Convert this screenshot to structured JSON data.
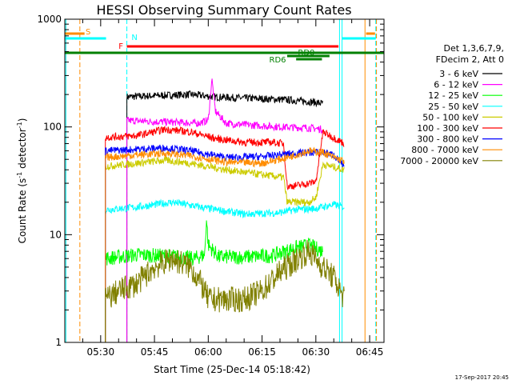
{
  "chart_data": {
    "type": "line",
    "title": "HESSI Observing Summary Count Rates",
    "xlabel": "Start Time (25-Dec-14 05:18:42)",
    "ylabel_main": "Count Rate (s",
    "ylabel_sup1": "-1",
    "ylabel_mid": " detector",
    "ylabel_sup2": "-1",
    "ylabel_end": ")",
    "y_scale": "log",
    "ylim": [
      1,
      1000
    ],
    "xlim_min": [
      20,
      109
    ],
    "ytick_labels": [
      "1",
      "10",
      "100",
      "1000"
    ],
    "ytick_values": [
      1,
      10,
      100,
      1000
    ],
    "xtick_labels": [
      "05:30",
      "05:45",
      "06:00",
      "06:15",
      "06:30",
      "06:45"
    ],
    "xtick_values_min": [
      30,
      45,
      60,
      75,
      90,
      105
    ],
    "legend_header": [
      "Det 1,3,6,7,9,",
      "FDecim 2, Att 0"
    ],
    "legend_position": "right",
    "series": [
      {
        "name": "3 - 6 keV",
        "color": "#000000",
        "points": [
          [
            37.3,
            190
          ],
          [
            45,
            195
          ],
          [
            55,
            200
          ],
          [
            62,
            190
          ],
          [
            70,
            185
          ],
          [
            80,
            180
          ],
          [
            88,
            172
          ],
          [
            92,
            165
          ]
        ]
      },
      {
        "name": "6 - 12 keV",
        "color": "#ff00ff",
        "points": [
          [
            37.3,
            115
          ],
          [
            45,
            112
          ],
          [
            52,
            110
          ],
          [
            57,
            108
          ],
          [
            60,
            115
          ],
          [
            61,
            280
          ],
          [
            62,
            140
          ],
          [
            65,
            108
          ],
          [
            70,
            105
          ],
          [
            80,
            100
          ],
          [
            88,
            98
          ],
          [
            92,
            95
          ]
        ]
      },
      {
        "name": "12 - 25 keV",
        "color": "#00ff00",
        "points": [
          [
            31.3,
            6
          ],
          [
            40,
            6.5
          ],
          [
            50,
            6.3
          ],
          [
            56,
            6
          ],
          [
            59,
            6.5
          ],
          [
            59.5,
            14
          ],
          [
            60,
            8
          ],
          [
            63,
            6.2
          ],
          [
            70,
            6.2
          ],
          [
            78,
            6.4
          ],
          [
            84,
            7.5
          ],
          [
            88,
            8
          ],
          [
            92,
            7
          ]
        ]
      },
      {
        "name": "25 - 50 keV",
        "color": "#00ffff",
        "points": [
          [
            31.3,
            17
          ],
          [
            40,
            18
          ],
          [
            50,
            20
          ],
          [
            60,
            17.5
          ],
          [
            70,
            15.5
          ],
          [
            80,
            16
          ],
          [
            84,
            17
          ],
          [
            90,
            17.5
          ],
          [
            95,
            19
          ],
          [
            98,
            18
          ]
        ]
      },
      {
        "name": "50 - 100 keV",
        "color": "#cccc00",
        "points": [
          [
            31.3,
            43
          ],
          [
            40,
            46
          ],
          [
            48,
            49
          ],
          [
            55,
            46
          ],
          [
            65,
            40
          ],
          [
            75,
            36
          ],
          [
            81,
            34
          ],
          [
            82,
            20
          ],
          [
            88,
            20
          ],
          [
            90,
            22
          ],
          [
            92,
            45
          ],
          [
            98,
            40
          ]
        ]
      },
      {
        "name": "100 - 300 keV",
        "color": "#ff0000",
        "points": [
          [
            31.3,
            80
          ],
          [
            40,
            83
          ],
          [
            48,
            95
          ],
          [
            55,
            90
          ],
          [
            62,
            78
          ],
          [
            70,
            72
          ],
          [
            78,
            72
          ],
          [
            81,
            70
          ],
          [
            82,
            28
          ],
          [
            86,
            29
          ],
          [
            90,
            31
          ],
          [
            92,
            90
          ],
          [
            98,
            70
          ]
        ]
      },
      {
        "name": "300 - 800 keV",
        "color": "#0000ff",
        "points": [
          [
            31.3,
            60
          ],
          [
            40,
            62
          ],
          [
            48,
            64
          ],
          [
            55,
            60
          ],
          [
            65,
            52
          ],
          [
            75,
            53
          ],
          [
            82,
            56
          ],
          [
            88,
            58
          ],
          [
            92,
            58
          ],
          [
            95,
            55
          ],
          [
            98,
            42
          ]
        ]
      },
      {
        "name": "800 - 7000 keV",
        "color": "#ff8c00",
        "points": [
          [
            31.3,
            52
          ],
          [
            40,
            55
          ],
          [
            48,
            57
          ],
          [
            55,
            54
          ],
          [
            65,
            47
          ],
          [
            75,
            46
          ],
          [
            82,
            52
          ],
          [
            88,
            60
          ],
          [
            92,
            58
          ],
          [
            95,
            52
          ],
          [
            98,
            48
          ]
        ]
      },
      {
        "name": "7000 - 20000 keV",
        "color": "#808000",
        "points": [
          [
            31.3,
            2.5
          ],
          [
            35,
            3
          ],
          [
            40,
            3.5
          ],
          [
            45,
            5
          ],
          [
            50,
            6
          ],
          [
            55,
            5
          ],
          [
            58,
            3.5
          ],
          [
            60,
            2.5
          ],
          [
            65,
            2.5
          ],
          [
            70,
            2.5
          ],
          [
            75,
            3
          ],
          [
            80,
            4.5
          ],
          [
            85,
            6
          ],
          [
            88,
            7
          ],
          [
            92,
            5
          ],
          [
            95,
            4
          ],
          [
            98,
            2.5
          ]
        ]
      }
    ],
    "annotations": [
      {
        "text": "S",
        "color": "#ff8c00"
      },
      {
        "text": "N",
        "color": "#00ffff"
      },
      {
        "text": "F",
        "color": "#ff0000"
      },
      {
        "text": "RD0",
        "color": "#008000"
      },
      {
        "text": "RD6",
        "color": "#008000"
      }
    ],
    "timestamp": "17-Sep-2017 20:45"
  }
}
